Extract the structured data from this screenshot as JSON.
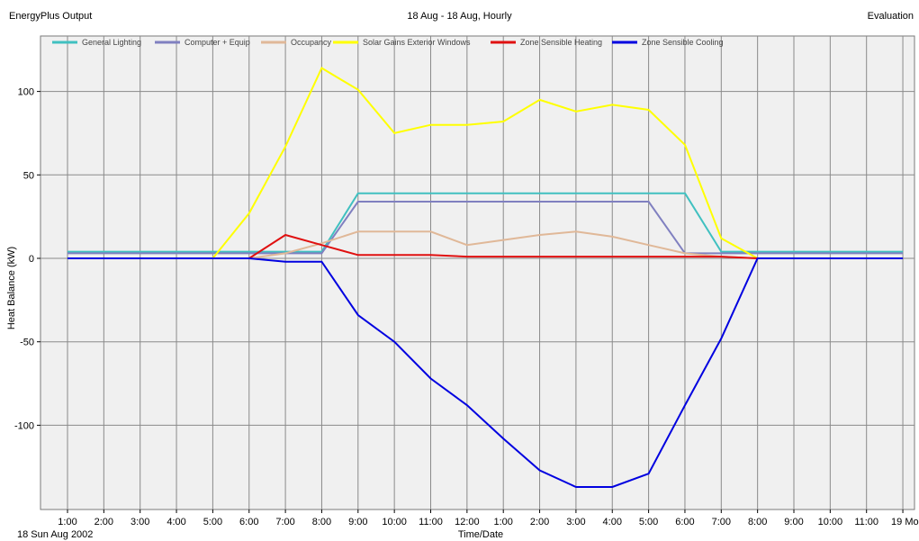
{
  "header": {
    "left": "EnergyPlus Output",
    "center": "18 Aug - 18 Aug, Hourly",
    "right": "Evaluation"
  },
  "chart_data": {
    "type": "line",
    "title": "",
    "xlabel": "Time/Date",
    "ylabel": "Heat Balance (kW)",
    "date_label": "18 Sun  Aug 2002",
    "ylim": [
      -150,
      125
    ],
    "yticks": [
      100,
      50,
      0,
      -50,
      -100
    ],
    "grid": true,
    "legend_position": "top",
    "categories": [
      "1:00",
      "2:00",
      "3:00",
      "4:00",
      "5:00",
      "6:00",
      "7:00",
      "8:00",
      "9:00",
      "10:00",
      "11:00",
      "12:00",
      "1:00",
      "2:00",
      "3:00",
      "4:00",
      "5:00",
      "6:00",
      "7:00",
      "8:00",
      "9:00",
      "10:00",
      "11:00",
      "19 Mon"
    ],
    "series": [
      {
        "name": "General Lighting",
        "color": "#40c0c0",
        "values": [
          4,
          4,
          4,
          4,
          4,
          4,
          4,
          4,
          39,
          39,
          39,
          39,
          39,
          39,
          39,
          39,
          39,
          39,
          4,
          4,
          4,
          4,
          4,
          4
        ]
      },
      {
        "name": "Computer + Equip",
        "color": "#8080c0",
        "values": [
          3,
          3,
          3,
          3,
          3,
          3,
          3,
          3,
          34,
          34,
          34,
          34,
          34,
          34,
          34,
          34,
          34,
          3,
          3,
          3,
          3,
          3,
          3,
          3
        ]
      },
      {
        "name": "Occupancy",
        "color": "#e0b898",
        "values": [
          0,
          0,
          0,
          0,
          0,
          0,
          3,
          9,
          16,
          16,
          16,
          8,
          11,
          14,
          16,
          13,
          8,
          3,
          1,
          0,
          0,
          0,
          0,
          0
        ]
      },
      {
        "name": "Solar Gains Exterior Windows",
        "color": "#ffff00",
        "values": [
          0,
          0,
          0,
          0,
          0,
          27,
          67,
          114,
          101,
          75,
          80,
          80,
          82,
          95,
          88,
          92,
          89,
          68,
          12,
          0,
          0,
          0,
          0,
          0
        ]
      },
      {
        "name": "Zone Sensible Heating",
        "color": "#e01010",
        "values": [
          0,
          0,
          0,
          0,
          0,
          0,
          14,
          8,
          2,
          2,
          2,
          1,
          1,
          1,
          1,
          1,
          1,
          1,
          1,
          0,
          0,
          0,
          0,
          0
        ]
      },
      {
        "name": "Zone Sensible Cooling",
        "color": "#0000e0",
        "values": [
          0,
          0,
          0,
          0,
          0,
          0,
          -2,
          -2,
          -34,
          -50,
          -72,
          -88,
          -108,
          -127,
          -137,
          -137,
          -129,
          -88,
          -48,
          0,
          0,
          0,
          0,
          0
        ]
      }
    ]
  }
}
